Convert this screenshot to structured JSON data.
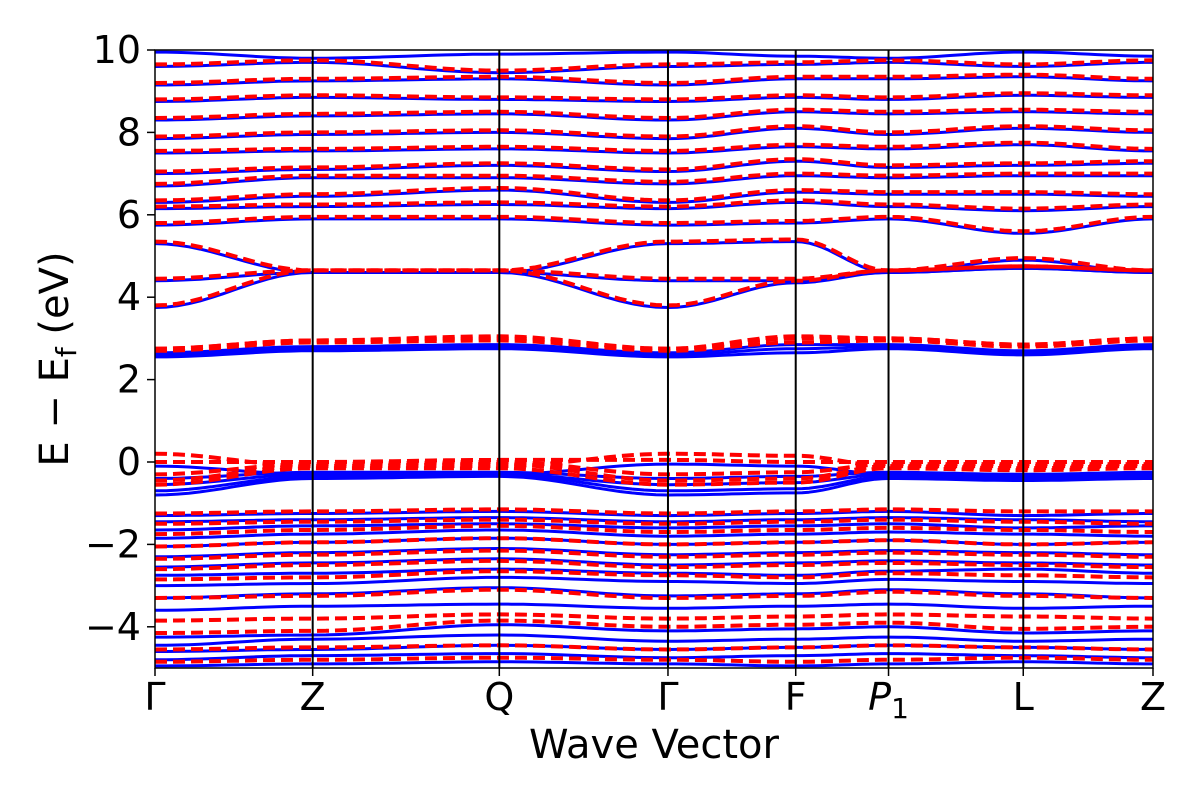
{
  "chart_data": {
    "type": "line",
    "xlabel": "Wave Vector",
    "ylabel_main": "E − E",
    "ylabel_sub": "f",
    "ylabel_unit": " (eV)",
    "ylim": [
      -5,
      10
    ],
    "yticks": [
      -4,
      -2,
      0,
      2,
      4,
      6,
      8,
      10
    ],
    "ytick_labels": [
      "−4",
      "−2",
      "0",
      "2",
      "4",
      "6",
      "8",
      "10"
    ],
    "kpath": [
      {
        "label": "Γ",
        "pos": 0.0
      },
      {
        "label": "Z",
        "pos": 0.158
      },
      {
        "label": "Q",
        "pos": 0.345
      },
      {
        "label": "Γ",
        "pos": 0.514
      },
      {
        "label": "F",
        "pos": 0.642
      },
      {
        "label": "P",
        "sub": "1",
        "pos": 0.735
      },
      {
        "label": "L",
        "pos": 0.87
      },
      {
        "label": "Z",
        "pos": 1.0
      }
    ],
    "colors": {
      "series_a": "#0000ff",
      "series_b": "#ff0000",
      "vlines": "#000000"
    },
    "series": [
      {
        "style": "solid",
        "color": "#0000ff",
        "bands": [
          {
            "key": [
              -4.95,
              -4.9,
              -4.85,
              -4.9,
              -4.95,
              -4.9,
              -4.85,
              -4.9
            ]
          },
          {
            "key": [
              -4.8,
              -4.7,
              -4.65,
              -4.75,
              -4.7,
              -4.65,
              -4.7,
              -4.75
            ]
          },
          {
            "key": [
              -4.6,
              -4.55,
              -4.45,
              -4.55,
              -4.5,
              -4.45,
              -4.5,
              -4.55
            ]
          },
          {
            "key": [
              -4.45,
              -4.3,
              -4.2,
              -4.35,
              -4.3,
              -4.25,
              -4.35,
              -4.3
            ]
          },
          {
            "key": [
              -4.25,
              -4.2,
              -3.95,
              -4.1,
              -4.05,
              -4.0,
              -4.15,
              -4.1
            ]
          },
          {
            "key": [
              -3.6,
              -3.5,
              -3.45,
              -3.55,
              -3.5,
              -3.45,
              -3.55,
              -3.5
            ]
          },
          {
            "key": [
              -3.3,
              -3.2,
              -3.05,
              -3.25,
              -3.2,
              -3.1,
              -3.2,
              -3.3
            ]
          },
          {
            "key": [
              -3.0,
              -2.95,
              -2.8,
              -2.9,
              -2.95,
              -2.85,
              -2.9,
              -2.95
            ]
          },
          {
            "key": [
              -2.75,
              -2.7,
              -2.6,
              -2.7,
              -2.75,
              -2.65,
              -2.6,
              -2.7
            ]
          },
          {
            "key": [
              -2.55,
              -2.45,
              -2.35,
              -2.5,
              -2.45,
              -2.4,
              -2.45,
              -2.5
            ]
          },
          {
            "key": [
              -2.3,
              -2.2,
              -2.1,
              -2.25,
              -2.2,
              -2.15,
              -2.2,
              -2.25
            ]
          },
          {
            "key": [
              -2.05,
              -1.95,
              -1.85,
              -2.0,
              -1.95,
              -1.9,
              -2.0,
              -1.95
            ]
          },
          {
            "key": [
              -1.85,
              -1.75,
              -1.65,
              -1.8,
              -1.75,
              -1.7,
              -1.75,
              -1.8
            ]
          },
          {
            "key": [
              -1.65,
              -1.55,
              -1.5,
              -1.6,
              -1.55,
              -1.5,
              -1.6,
              -1.55
            ]
          },
          {
            "key": [
              -1.45,
              -1.4,
              -1.35,
              -1.45,
              -1.4,
              -1.35,
              -1.4,
              -1.45
            ]
          },
          {
            "key": [
              -1.3,
              -1.25,
              -1.2,
              -1.3,
              -1.25,
              -1.2,
              -1.3,
              -1.25
            ]
          },
          {
            "key": [
              -0.8,
              -0.4,
              -0.35,
              -0.8,
              -0.75,
              -0.4,
              -0.45,
              -0.4
            ]
          },
          {
            "key": [
              -0.7,
              -0.35,
              -0.3,
              -0.7,
              -0.65,
              -0.35,
              -0.4,
              -0.35
            ]
          },
          {
            "key": [
              -0.55,
              -0.3,
              -0.3,
              -0.55,
              -0.5,
              -0.3,
              -0.35,
              -0.3
            ]
          },
          {
            "key": [
              -0.4,
              -0.25,
              -0.25,
              -0.4,
              -0.35,
              -0.25,
              -0.3,
              -0.25
            ]
          },
          {
            "key": [
              -0.1,
              -0.3,
              -0.3,
              -0.05,
              -0.1,
              -0.3,
              -0.3,
              -0.3
            ]
          },
          {
            "key": [
              2.55,
              2.7,
              2.75,
              2.55,
              2.65,
              2.75,
              2.6,
              2.75
            ]
          },
          {
            "key": [
              2.6,
              2.75,
              2.8,
              2.6,
              2.75,
              2.8,
              2.65,
              2.8
            ]
          },
          {
            "key": [
              2.65,
              2.8,
              2.85,
              2.65,
              2.85,
              2.85,
              2.7,
              2.85
            ]
          },
          {
            "key": [
              3.75,
              4.6,
              4.6,
              3.75,
              4.35,
              4.6,
              4.7,
              4.6
            ]
          },
          {
            "key": [
              4.4,
              4.6,
              4.6,
              4.4,
              4.4,
              4.6,
              4.7,
              4.6
            ]
          },
          {
            "key": [
              5.3,
              4.6,
              4.6,
              5.3,
              5.35,
              4.6,
              4.9,
              4.6
            ]
          },
          {
            "key": [
              5.75,
              5.9,
              5.9,
              5.75,
              5.8,
              5.9,
              5.55,
              5.9
            ]
          },
          {
            "key": [
              6.15,
              6.2,
              6.25,
              6.15,
              6.3,
              6.2,
              6.1,
              6.2
            ]
          },
          {
            "key": [
              6.3,
              6.45,
              6.6,
              6.3,
              6.55,
              6.5,
              6.5,
              6.45
            ]
          },
          {
            "key": [
              6.7,
              6.9,
              6.9,
              6.75,
              6.95,
              6.9,
              6.95,
              6.95
            ]
          },
          {
            "key": [
              7.0,
              7.1,
              7.2,
              7.05,
              7.3,
              7.15,
              7.2,
              7.25
            ]
          },
          {
            "key": [
              7.5,
              7.55,
              7.6,
              7.5,
              7.65,
              7.6,
              7.7,
              7.55
            ]
          },
          {
            "key": [
              7.85,
              7.95,
              8.0,
              7.85,
              8.1,
              7.95,
              8.1,
              8.0
            ]
          },
          {
            "key": [
              8.3,
              8.4,
              8.45,
              8.3,
              8.5,
              8.45,
              8.5,
              8.45
            ]
          },
          {
            "key": [
              8.75,
              8.85,
              8.8,
              8.75,
              8.85,
              8.8,
              8.9,
              8.85
            ]
          },
          {
            "key": [
              9.15,
              9.25,
              9.3,
              9.15,
              9.3,
              9.3,
              9.35,
              9.25
            ]
          },
          {
            "key": [
              9.6,
              9.7,
              9.45,
              9.6,
              9.65,
              9.7,
              9.6,
              9.7
            ]
          },
          {
            "key": [
              9.95,
              9.8,
              9.9,
              9.95,
              9.85,
              9.8,
              9.95,
              9.85
            ]
          }
        ]
      },
      {
        "style": "dashed",
        "color": "#ff0000",
        "bands": [
          {
            "key": [
              -4.85,
              -4.8,
              -4.75,
              -4.8,
              -4.85,
              -4.8,
              -4.75,
              -4.8
            ]
          },
          {
            "key": [
              -4.55,
              -4.5,
              -4.45,
              -4.55,
              -4.5,
              -4.45,
              -4.5,
              -4.55
            ]
          },
          {
            "key": [
              -4.15,
              -4.1,
              -3.85,
              -4.0,
              -3.95,
              -3.9,
              -4.05,
              -4.0
            ]
          },
          {
            "key": [
              -3.85,
              -3.8,
              -3.7,
              -3.8,
              -3.75,
              -3.7,
              -3.75,
              -3.8
            ]
          },
          {
            "key": [
              -3.3,
              -3.25,
              -3.1,
              -3.3,
              -3.25,
              -3.15,
              -3.25,
              -3.3
            ]
          },
          {
            "key": [
              -2.85,
              -2.8,
              -2.65,
              -2.75,
              -2.8,
              -2.7,
              -2.75,
              -2.8
            ]
          },
          {
            "key": [
              -2.6,
              -2.5,
              -2.4,
              -2.55,
              -2.5,
              -2.45,
              -2.5,
              -2.55
            ]
          },
          {
            "key": [
              -2.35,
              -2.25,
              -2.15,
              -2.3,
              -2.25,
              -2.2,
              -2.25,
              -2.3
            ]
          },
          {
            "key": [
              -2.05,
              -1.95,
              -1.85,
              -2.0,
              -1.95,
              -1.9,
              -2.0,
              -1.95
            ]
          },
          {
            "key": [
              -1.75,
              -1.65,
              -1.55,
              -1.7,
              -1.65,
              -1.6,
              -1.65,
              -1.7
            ]
          },
          {
            "key": [
              -1.5,
              -1.45,
              -1.4,
              -1.5,
              -1.45,
              -1.4,
              -1.45,
              -1.5
            ]
          },
          {
            "key": [
              -1.25,
              -1.2,
              -1.15,
              -1.25,
              -1.2,
              -1.15,
              -1.2,
              -1.2
            ]
          },
          {
            "key": [
              -0.55,
              -0.15,
              -0.15,
              -0.55,
              -0.5,
              -0.15,
              -0.2,
              -0.15
            ]
          },
          {
            "key": [
              -0.45,
              -0.1,
              -0.05,
              -0.45,
              -0.4,
              -0.1,
              -0.15,
              -0.1
            ]
          },
          {
            "key": [
              -0.3,
              -0.05,
              0.0,
              -0.3,
              -0.25,
              -0.05,
              -0.05,
              -0.05
            ]
          },
          {
            "key": [
              0.0,
              0.0,
              0.05,
              0.05,
              0.0,
              0.0,
              0.0,
              0.0
            ]
          },
          {
            "key": [
              0.2,
              -0.1,
              -0.1,
              0.2,
              0.15,
              -0.1,
              -0.1,
              -0.1
            ]
          },
          {
            "key": [
              2.7,
              2.9,
              2.95,
              2.7,
              2.9,
              2.95,
              2.8,
              2.95
            ]
          },
          {
            "key": [
              2.75,
              2.95,
              3.0,
              2.75,
              3.0,
              3.0,
              2.85,
              3.0
            ]
          },
          {
            "key": [
              2.75,
              2.95,
              3.05,
              2.75,
              3.05,
              3.0,
              2.85,
              3.0
            ]
          },
          {
            "key": [
              3.8,
              4.65,
              4.65,
              3.8,
              4.4,
              4.65,
              4.75,
              4.65
            ]
          },
          {
            "key": [
              4.45,
              4.65,
              4.65,
              4.45,
              4.45,
              4.65,
              4.75,
              4.65
            ]
          },
          {
            "key": [
              5.35,
              4.65,
              4.65,
              5.35,
              5.4,
              4.65,
              4.95,
              4.65
            ]
          },
          {
            "key": [
              5.8,
              5.95,
              5.95,
              5.8,
              5.85,
              5.95,
              5.6,
              5.95
            ]
          },
          {
            "key": [
              6.2,
              6.25,
              6.3,
              6.2,
              6.35,
              6.25,
              6.15,
              6.25
            ]
          },
          {
            "key": [
              6.35,
              6.5,
              6.65,
              6.35,
              6.6,
              6.55,
              6.55,
              6.5
            ]
          },
          {
            "key": [
              6.75,
              6.95,
              6.95,
              6.8,
              7.0,
              6.95,
              7.0,
              7.0
            ]
          },
          {
            "key": [
              7.05,
              7.15,
              7.25,
              7.1,
              7.35,
              7.2,
              7.25,
              7.3
            ]
          },
          {
            "key": [
              7.55,
              7.6,
              7.65,
              7.55,
              7.7,
              7.65,
              7.75,
              7.6
            ]
          },
          {
            "key": [
              7.9,
              8.0,
              8.05,
              7.9,
              8.15,
              8.0,
              8.15,
              8.05
            ]
          },
          {
            "key": [
              8.35,
              8.45,
              8.5,
              8.35,
              8.55,
              8.5,
              8.55,
              8.5
            ]
          },
          {
            "key": [
              8.8,
              8.9,
              8.85,
              8.8,
              8.9,
              8.85,
              8.95,
              8.9
            ]
          },
          {
            "key": [
              9.2,
              9.3,
              9.35,
              9.2,
              9.35,
              9.35,
              9.4,
              9.3
            ]
          },
          {
            "key": [
              9.65,
              9.75,
              9.5,
              9.65,
              9.7,
              9.75,
              9.65,
              9.75
            ]
          }
        ]
      }
    ]
  }
}
